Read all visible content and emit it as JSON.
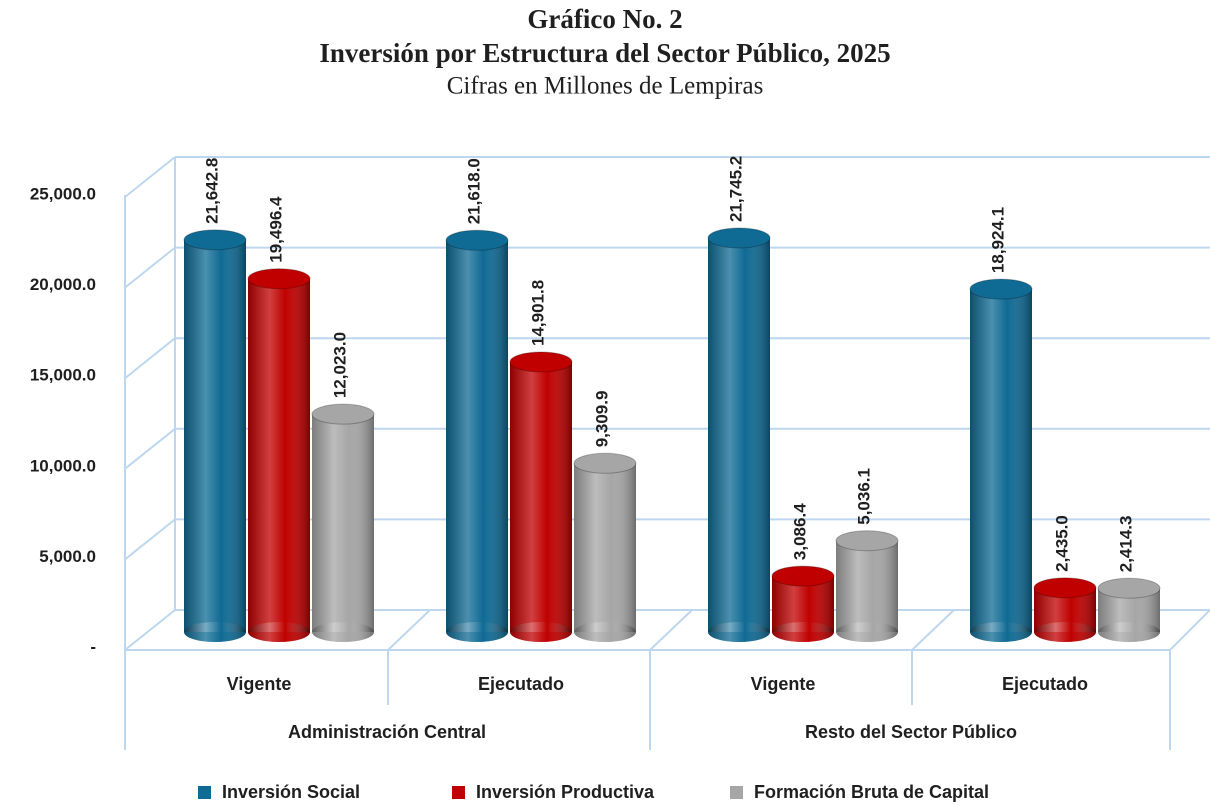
{
  "chart_data": {
    "type": "bar3d",
    "title": "Gráfico No. 2",
    "subtitle": "Inversión por Estructura del Sector Público, 2025",
    "note": "Cifras en Millones de Lempiras",
    "categories": [
      "Vigente",
      "Ejecutado",
      "Vigente",
      "Ejecutado"
    ],
    "groups": [
      {
        "name": "Administración Central",
        "span": 2
      },
      {
        "name": "Resto del Sector Público",
        "span": 2
      }
    ],
    "series": [
      {
        "name": "Inversión Social",
        "color": "#0f6a94",
        "values": [
          21642.8,
          21618.0,
          21745.2,
          18924.1
        ],
        "value_labels": [
          "21,642.8",
          "21,618.0",
          "21,745.2",
          "18,924.1"
        ]
      },
      {
        "name": "Inversión Productiva",
        "color": "#c00000",
        "values": [
          19496.4,
          14901.8,
          3086.4,
          2435.0
        ],
        "value_labels": [
          "19,496.4",
          "14,901.8",
          "3,086.4",
          "2,435.0"
        ]
      },
      {
        "name": "Formación Bruta de Capital",
        "color": "#a6a6a6",
        "values": [
          12023.0,
          9309.9,
          5036.1,
          2414.3
        ],
        "value_labels": [
          "12,023.0",
          "9,309.9",
          "5,036.1",
          "2,414.3"
        ]
      }
    ],
    "ylim": [
      0,
      25000
    ],
    "yticks": [
      {
        "value": 0,
        "label": "-"
      },
      {
        "value": 5000,
        "label": "5,000.0"
      },
      {
        "value": 10000,
        "label": "10,000.0"
      },
      {
        "value": 15000,
        "label": "15,000.0"
      },
      {
        "value": 20000,
        "label": "20,000.0"
      },
      {
        "value": 25000,
        "label": "25,000.0"
      }
    ],
    "grid": true,
    "legend": "bottom"
  }
}
